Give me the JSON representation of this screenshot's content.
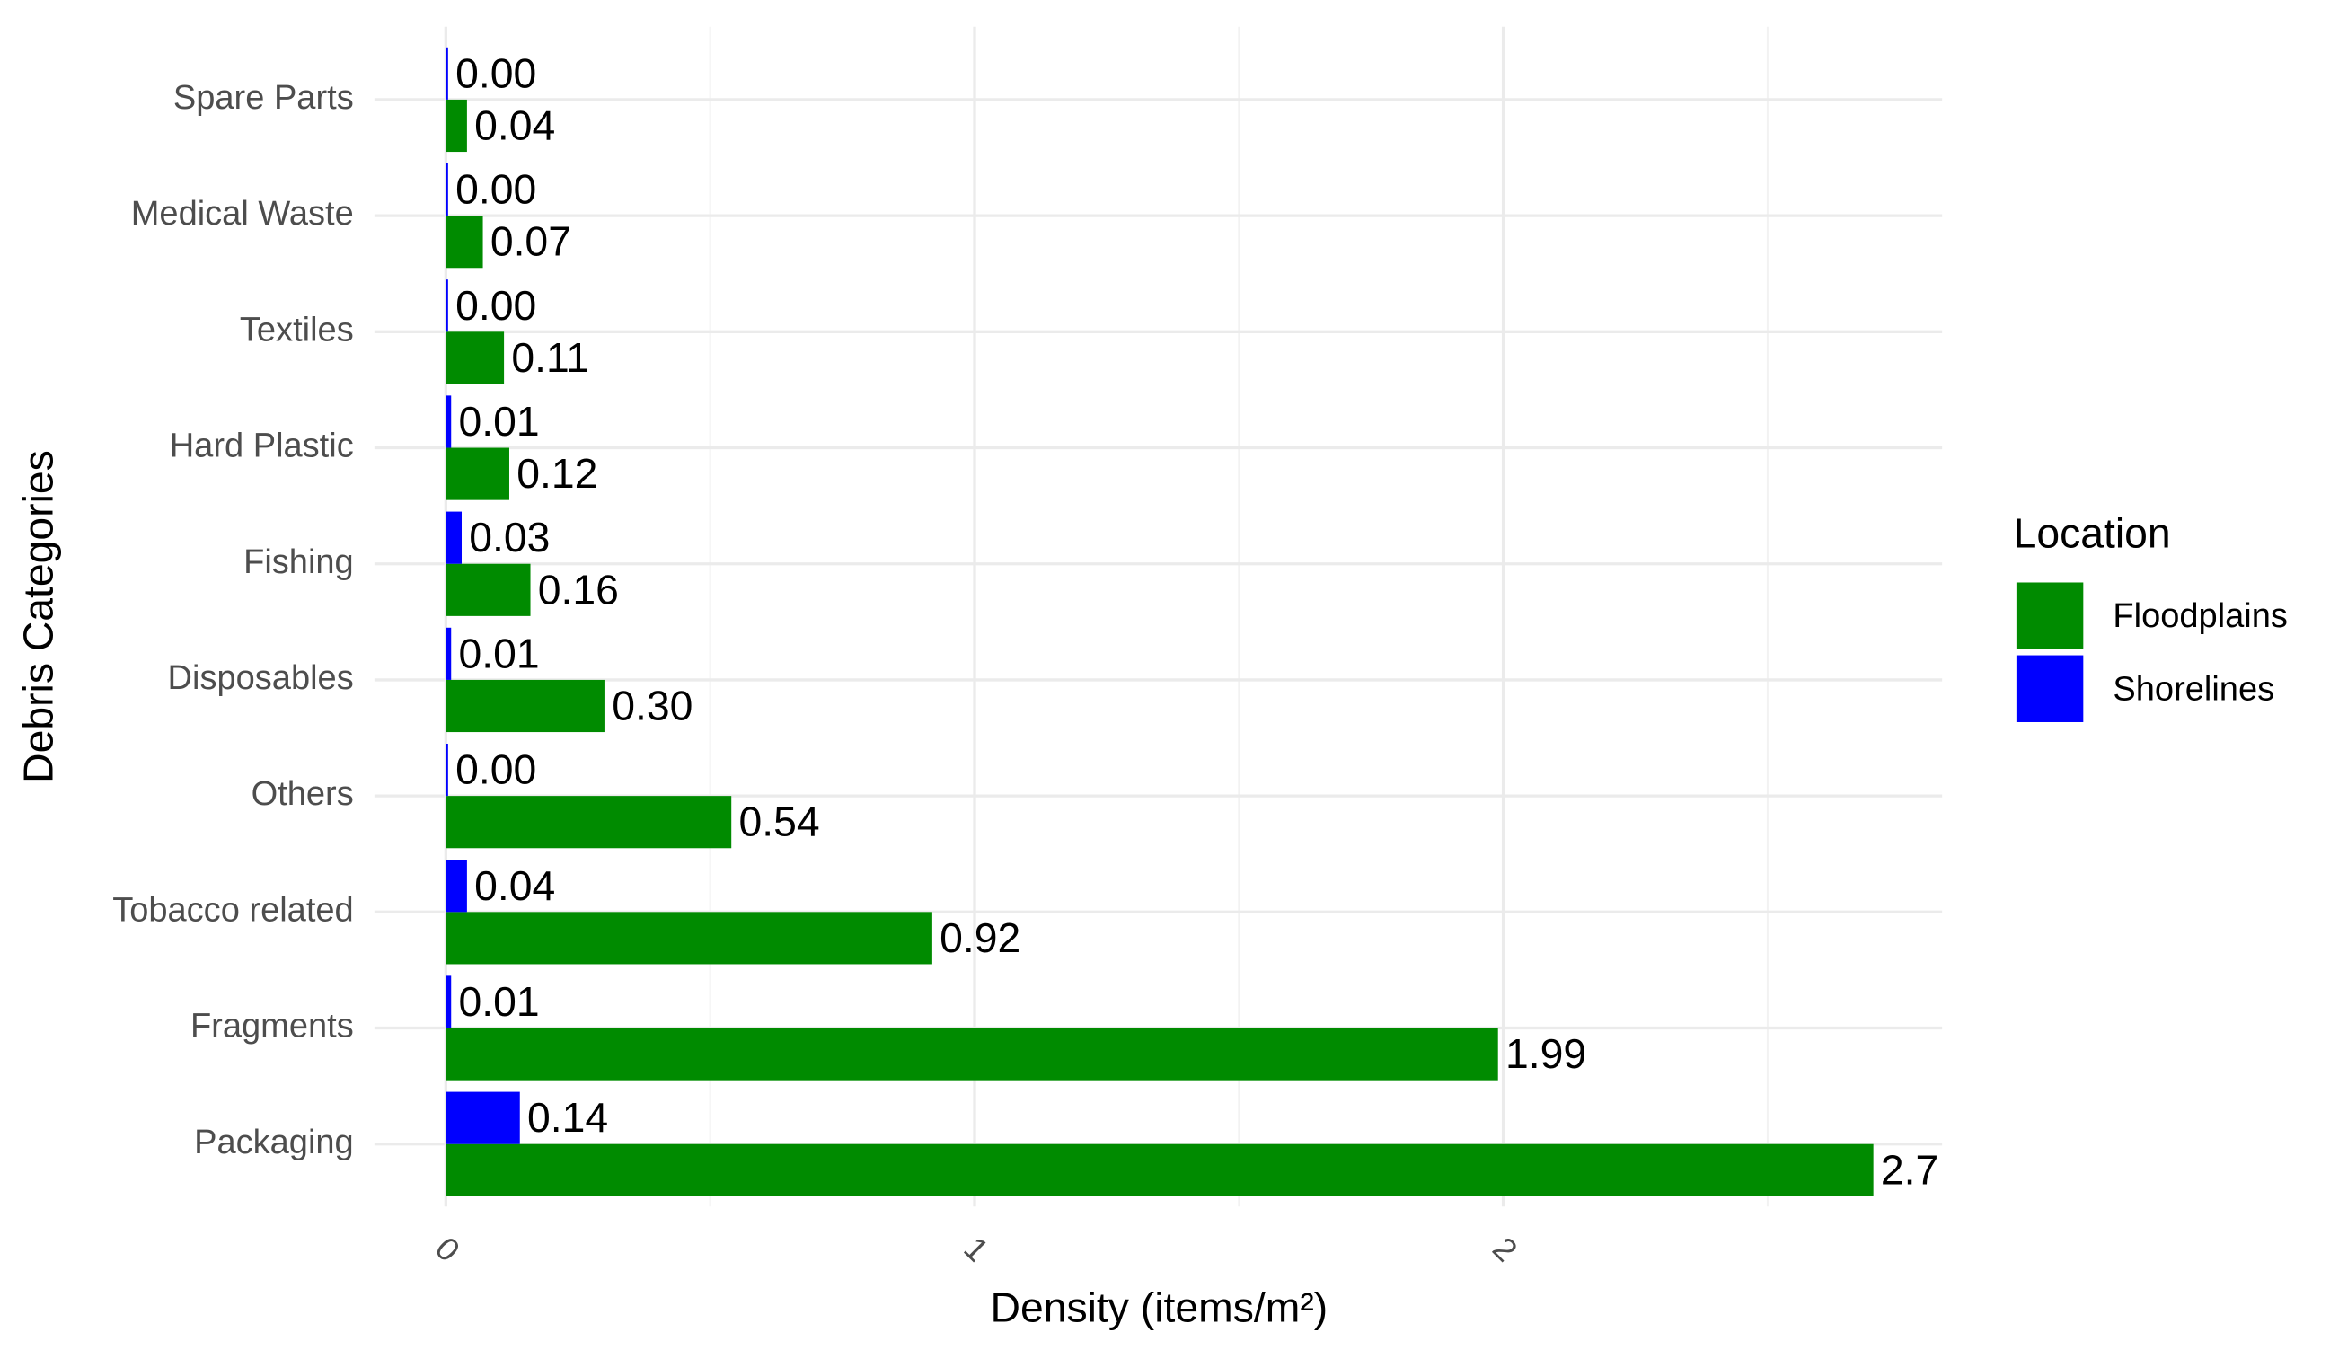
{
  "chart_data": {
    "type": "hbar",
    "categories": [
      "Packaging",
      "Fragments",
      "Tobacco related",
      "Others",
      "Disposables",
      "Fishing",
      "Hard Plastic",
      "Textiles",
      "Medical Waste",
      "Spare Parts"
    ],
    "series": [
      {
        "name": "Floodplains",
        "color": "#008b00",
        "values": [
          2.7,
          1.99,
          0.92,
          0.54,
          0.3,
          0.16,
          0.12,
          0.11,
          0.07,
          0.04
        ],
        "value_labels": [
          "2.7",
          "1.99",
          "0.92",
          "0.54",
          "0.30",
          "0.16",
          "0.12",
          "0.11",
          "0.07",
          "0.04"
        ]
      },
      {
        "name": "Shorelines",
        "color": "#0000ff",
        "values": [
          0.14,
          0.01,
          0.04,
          0.0,
          0.01,
          0.03,
          0.01,
          0.0,
          0.0,
          0.0
        ],
        "value_labels": [
          "0.14",
          "0.01",
          "0.04",
          "0.00",
          "0.01",
          "0.03",
          "0.01",
          "0.00",
          "0.00",
          "0.00"
        ]
      }
    ],
    "xlabel": "Density (items/m²)",
    "ylabel": "Debris Categories",
    "legend_title": "Location",
    "legend": "right",
    "xlim": [
      -0.135,
      2.83
    ],
    "xticks": [
      0,
      1,
      2
    ],
    "x_minor_ticks": [
      0.5,
      1.5,
      2.5
    ],
    "grid": true
  }
}
